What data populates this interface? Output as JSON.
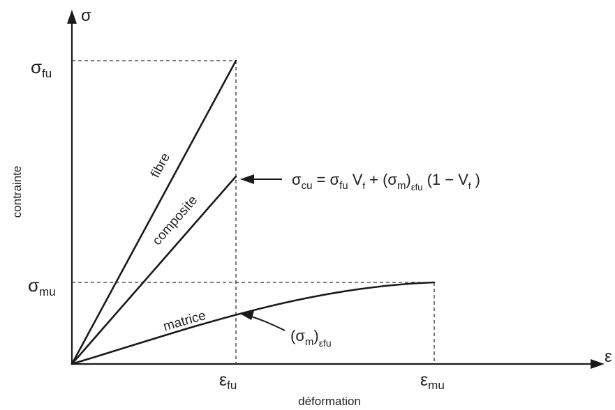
{
  "axes": {
    "y_symbol": "σ",
    "x_symbol": "ε",
    "y_label": "contrainte",
    "x_label": "déformation"
  },
  "y_ticks": {
    "sigma_fu": {
      "base": "σ",
      "sub": "fu"
    },
    "sigma_mu": {
      "base": "σ",
      "sub": "mu"
    }
  },
  "x_ticks": {
    "eps_fu": {
      "base": "ε",
      "sub": "fu"
    },
    "eps_mu": {
      "base": "ε",
      "sub": "mu"
    }
  },
  "curves": {
    "fibre": "fibre",
    "composite": "composite",
    "matrice": "matrice"
  },
  "formula": {
    "lhs_base": "σ",
    "lhs_sub": "cu",
    "equals": " = ",
    "t1_base": "σ",
    "t1_sub": "fu",
    "v1_base": " V",
    "v1_sub": "f",
    "plus": " + (",
    "m_base": "σ",
    "m_sub": "m",
    "close": ")",
    "eps_sub": "εfu",
    "tail": " (1 − V",
    "tail_sub": "f",
    "tail_end": " )"
  },
  "annotation": {
    "open": "(",
    "base": "σ",
    "sub": "m",
    "close": ")",
    "eps_sub": "εfu"
  }
}
